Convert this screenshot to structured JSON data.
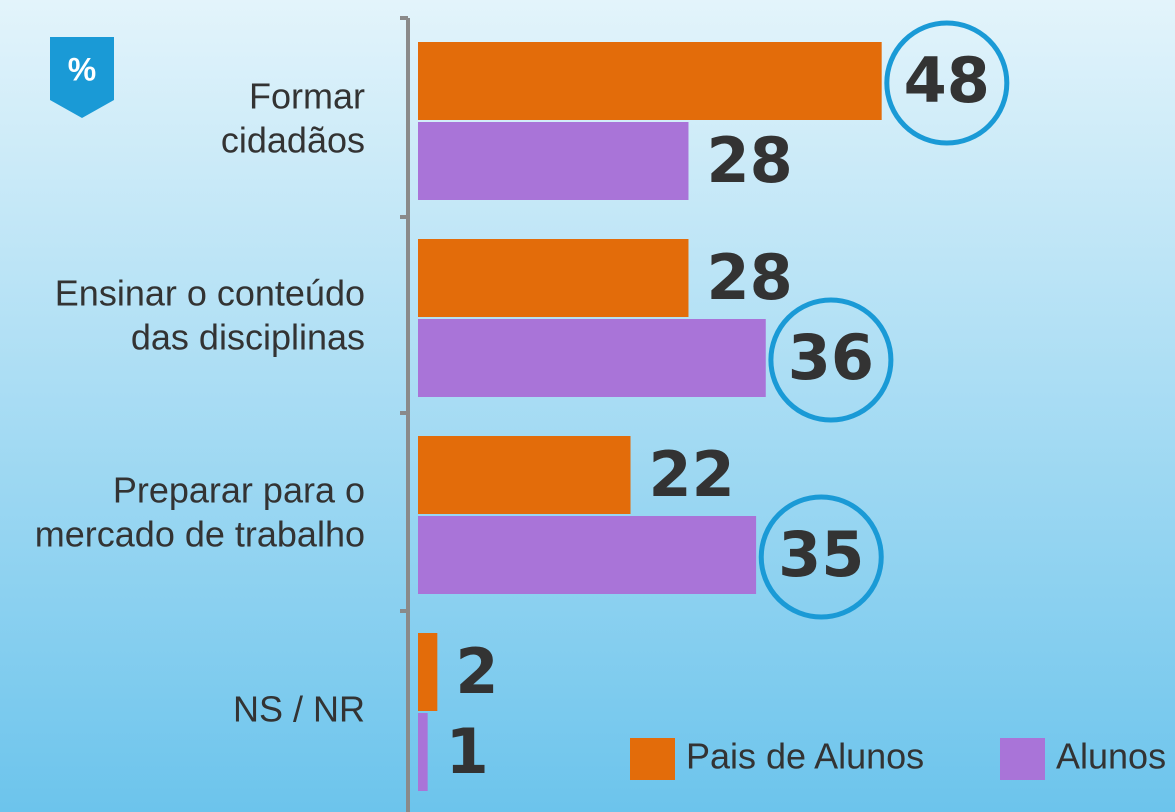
{
  "chart_data": {
    "type": "hbar",
    "unit": "%",
    "categories": [
      [
        "Formar",
        "cidadãos"
      ],
      [
        "Ensinar o conteúdo",
        "das disciplinas"
      ],
      [
        "Preparar para o",
        "mercado de trabalho"
      ],
      [
        "NS / NR"
      ]
    ],
    "series": [
      {
        "name": "Pais de Alunos",
        "color": "#e36c0a",
        "values": [
          48,
          28,
          22,
          2
        ],
        "circled": [
          true,
          false,
          false,
          false
        ]
      },
      {
        "name": "Alunos",
        "color": "#a974d8",
        "values": [
          28,
          36,
          35,
          1
        ],
        "circled": [
          false,
          true,
          true,
          false
        ]
      }
    ],
    "xlim": [
      0,
      50
    ],
    "legend": "lower right"
  }
}
